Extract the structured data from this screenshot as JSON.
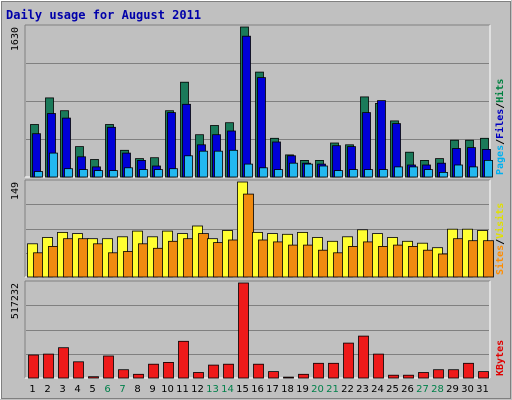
{
  "chart_data": {
    "type": "bar",
    "title": "Daily usage for August 2011",
    "categories": [
      "1",
      "2",
      "3",
      "4",
      "5",
      "6",
      "7",
      "8",
      "9",
      "10",
      "11",
      "12",
      "13",
      "14",
      "15",
      "16",
      "17",
      "18",
      "19",
      "20",
      "21",
      "22",
      "23",
      "24",
      "25",
      "26",
      "27",
      "28",
      "29",
      "30",
      "31"
    ],
    "weekend_days": [
      "6",
      "7",
      "13",
      "14",
      "20",
      "21",
      "27",
      "28"
    ],
    "panels": [
      {
        "id": "hits",
        "ymax_label": "1630",
        "ylim": [
          0,
          1630
        ],
        "side_labels": [
          {
            "text": "Pages",
            "color": "#00b0f0"
          },
          {
            "text": "Files",
            "color": "#0000c0"
          },
          {
            "text": "Hits",
            "color": "#008040"
          }
        ],
        "series": [
          {
            "name": "Hits",
            "color": "#1a7a5a",
            "values": [
              570,
              860,
              720,
              330,
              190,
              570,
              290,
              200,
              210,
              720,
              1030,
              460,
              560,
              590,
              1630,
              1140,
              420,
              240,
              180,
              180,
              370,
              350,
              870,
              800,
              610,
              270,
              180,
              200,
              400,
              400,
              420
            ]
          },
          {
            "name": "Files",
            "color": "#0000d8",
            "values": [
              470,
              690,
              640,
              220,
              110,
              540,
              260,
              180,
              120,
              700,
              790,
              350,
              460,
              500,
              1530,
              1080,
              380,
              230,
              150,
              140,
              340,
              330,
              700,
              830,
              580,
              130,
              130,
              150,
              310,
              320,
              300
            ]
          },
          {
            "name": "Pages",
            "color": "#22b8f0",
            "values": [
              60,
              260,
              90,
              80,
              70,
              70,
              100,
              80,
              80,
              90,
              230,
              280,
              280,
              290,
              140,
              100,
              80,
              150,
              140,
              120,
              70,
              80,
              80,
              80,
              110,
              110,
              80,
              50,
              130,
              110,
              180
            ]
          }
        ]
      },
      {
        "id": "visits",
        "ymax_label": "149",
        "ylim": [
          0,
          149
        ],
        "side_labels": [
          {
            "text": "Sites",
            "color": "#ff8c00"
          },
          {
            "text": "Visits",
            "color": "#e0e000"
          }
        ],
        "series": [
          {
            "name": "Visits",
            "color": "#ffff30",
            "values": [
              52,
              62,
              70,
              68,
              60,
              60,
              63,
              72,
              63,
              72,
              68,
              80,
              60,
              73,
              149,
              70,
              68,
              67,
              70,
              62,
              56,
              63,
              74,
              68,
              62,
              56,
              53,
              46,
              75,
              75,
              73
            ]
          },
          {
            "name": "Sites",
            "color": "#f08a10",
            "values": [
              38,
              48,
              60,
              60,
              52,
              38,
              40,
              52,
              45,
              56,
              60,
              68,
              54,
              58,
              130,
              58,
              55,
              50,
              50,
              42,
              38,
              48,
              55,
              48,
              50,
              48,
              42,
              36,
              60,
              57,
              57
            ]
          }
        ]
      },
      {
        "id": "kbytes",
        "ymax_label": "517232",
        "ylim": [
          0,
          517232
        ],
        "side_labels": [
          {
            "text": "KBytes",
            "color": "#e00000"
          }
        ],
        "series": [
          {
            "name": "KBytes",
            "color": "#ee1a1a",
            "values": [
              125000,
              130000,
              165000,
              88000,
              7000,
              120000,
              45000,
              20000,
              75000,
              85000,
              200000,
              30000,
              70000,
              75000,
              517232,
              75000,
              35000,
              5000,
              20000,
              80000,
              80000,
              190000,
              228000,
              130000,
              15000,
              15000,
              30000,
              45000,
              45000,
              80000,
              35000
            ]
          }
        ]
      }
    ]
  }
}
